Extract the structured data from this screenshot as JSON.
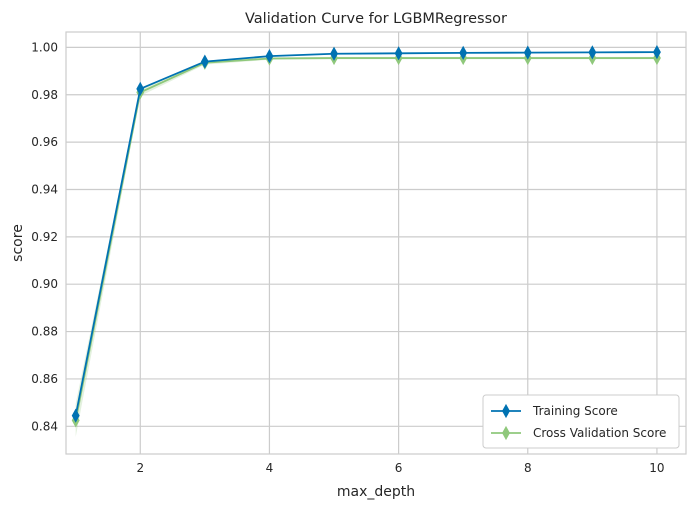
{
  "chart_data": {
    "type": "line",
    "title": "Validation Curve for LGBMRegressor",
    "xlabel": "max_depth",
    "ylabel": "score",
    "x": [
      1,
      2,
      3,
      4,
      5,
      6,
      7,
      8,
      9,
      10
    ],
    "xlim": [
      0.85,
      10.45
    ],
    "ylim": [
      0.8283,
      1.0065
    ],
    "xticks": [
      2,
      4,
      6,
      8,
      10
    ],
    "yticks": [
      0.84,
      0.86,
      0.88,
      0.9,
      0.92,
      0.94,
      0.96,
      0.98,
      1.0
    ],
    "ytick_labels": [
      "0.84",
      "0.86",
      "0.88",
      "0.90",
      "0.92",
      "0.94",
      "0.96",
      "0.98",
      "1.00"
    ],
    "grid": true,
    "legend_position": "lower-right",
    "series": [
      {
        "name": "Training Score",
        "color": "#0072b2",
        "marker": "thin-diamond",
        "values": [
          0.8445,
          0.9825,
          0.994,
          0.9963,
          0.9973,
          0.9975,
          0.9977,
          0.9978,
          0.9979,
          0.998
        ],
        "band": [
          0.0005,
          0.0004,
          0.0003,
          0.0002,
          0.0002,
          0.0002,
          0.0002,
          0.0002,
          0.0002,
          0.0002
        ]
      },
      {
        "name": "Cross Validation Score",
        "color": "#8fc87b",
        "marker": "thin-diamond",
        "values": [
          0.8425,
          0.981,
          0.9935,
          0.9953,
          0.9955,
          0.9955,
          0.9955,
          0.9955,
          0.9955,
          0.9955
        ],
        "band": [
          0.007,
          0.0015,
          0.0008,
          0.0005,
          0.0005,
          0.0005,
          0.0005,
          0.0005,
          0.0005,
          0.0005
        ]
      }
    ]
  }
}
